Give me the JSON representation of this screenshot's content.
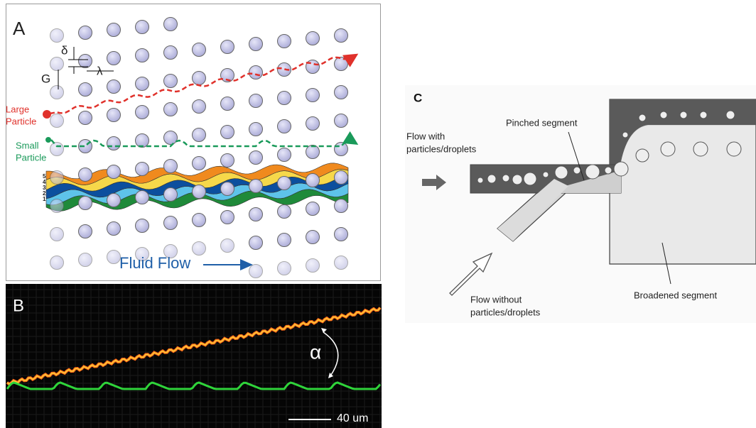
{
  "panels": {
    "a": {
      "label": "A",
      "delta": "δ",
      "gap": "G",
      "lambda": "λ",
      "large_particle": [
        "Large",
        "Particle"
      ],
      "small_particle": [
        "Small",
        "Particle"
      ],
      "lane_numbers": [
        "5",
        "4",
        "3",
        "2",
        "1"
      ],
      "fluid_flow": "Fluid Flow"
    },
    "b": {
      "label": "B",
      "angle": "α",
      "scale_bar": "40 um"
    },
    "c": {
      "label": "C",
      "inlet_flow": [
        "Flow with",
        "particles/droplets"
      ],
      "pinched": "Pinched segment",
      "side_flow": [
        "Flow without",
        "particles/droplets"
      ],
      "broadened": "Broadened segment"
    }
  }
}
